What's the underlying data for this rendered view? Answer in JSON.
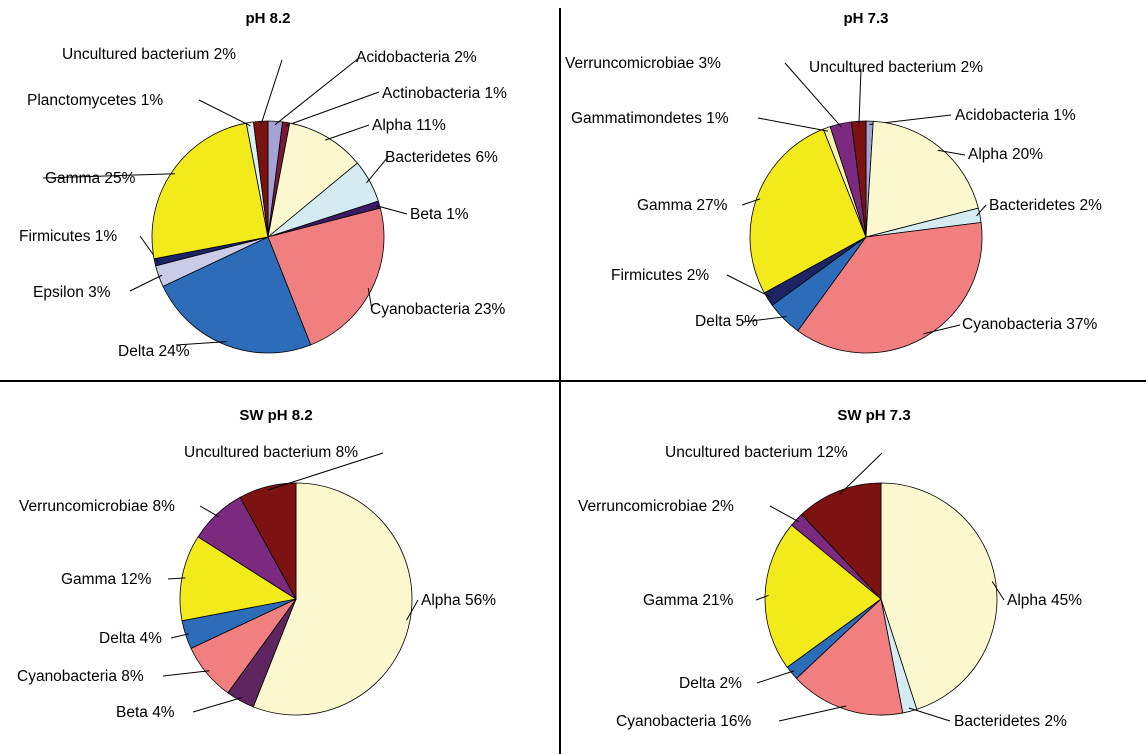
{
  "chart_data": [
    {
      "type": "pie",
      "title": "pH 8.2",
      "slices": [
        {
          "label": "Acidobacteria 2%",
          "value": 2,
          "color": "#a3a3d6"
        },
        {
          "label": "Actinobacteria 1%",
          "value": 1,
          "color": "#7a1838"
        },
        {
          "label": "Alpha 11%",
          "value": 11,
          "color": "#fbf8cf"
        },
        {
          "label": "Bacteridetes 6%",
          "value": 6,
          "color": "#d4ebf2"
        },
        {
          "label": "Beta 1%",
          "value": 1,
          "color": "#3c1b66"
        },
        {
          "label": "Cyanobacteria 23%",
          "value": 23,
          "color": "#f27f7f"
        },
        {
          "label": "Delta 24%",
          "value": 24,
          "color": "#2c6cb8"
        },
        {
          "label": "Epsilon 3%",
          "value": 3,
          "color": "#c9cbe9"
        },
        {
          "label": "Firmicutes 1%",
          "value": 1,
          "color": "#1c2466"
        },
        {
          "label": "Gamma 25%",
          "value": 25,
          "color": "#f3ea1c"
        },
        {
          "label": "Planctomycetes 1%",
          "value": 1,
          "color": "#d9f1ef"
        },
        {
          "label": "Uncultured bacterium 2%",
          "value": 2,
          "color": "#7c1212"
        }
      ]
    },
    {
      "type": "pie",
      "title": "pH 7.3",
      "slices": [
        {
          "label": "Acidobacteria 1%",
          "value": 1,
          "color": "#a3a3d6"
        },
        {
          "label": "Alpha 20%",
          "value": 20,
          "color": "#fbf8cf"
        },
        {
          "label": "Bacteridetes 2%",
          "value": 2,
          "color": "#d4ebf2"
        },
        {
          "label": "Cyanobacteria 37%",
          "value": 37,
          "color": "#f27f7f"
        },
        {
          "label": "Delta 5%",
          "value": 5,
          "color": "#2c6cb8"
        },
        {
          "label": "Firmicutes 2%",
          "value": 2,
          "color": "#1c2466"
        },
        {
          "label": "Gamma 27%",
          "value": 27,
          "color": "#f3ea1c"
        },
        {
          "label": "Gammatimondetes 1%",
          "value": 1,
          "color": "#f5f3b0"
        },
        {
          "label": "Verruncomicrobiae 3%",
          "value": 3,
          "color": "#7b2a80"
        },
        {
          "label": "Uncultured bacterium 2%",
          "value": 2,
          "color": "#7c1212"
        }
      ]
    },
    {
      "type": "pie",
      "title": "SW pH 8.2",
      "slices": [
        {
          "label": "Alpha 56%",
          "value": 56,
          "color": "#fbf8cf"
        },
        {
          "label": "Beta 4%",
          "value": 4,
          "color": "#5e2560"
        },
        {
          "label": "Cyanobacteria 8%",
          "value": 8,
          "color": "#f27f7f"
        },
        {
          "label": "Delta 4%",
          "value": 4,
          "color": "#2c6cb8"
        },
        {
          "label": "Gamma 12%",
          "value": 12,
          "color": "#f3ea1c"
        },
        {
          "label": "Verruncomicrobiae 8%",
          "value": 8,
          "color": "#7b2a80"
        },
        {
          "label": "Uncultured bacterium 8%",
          "value": 8,
          "color": "#7c1212"
        }
      ]
    },
    {
      "type": "pie",
      "title": "SW pH 7.3",
      "slices": [
        {
          "label": "Alpha 45%",
          "value": 45,
          "color": "#fbf8cf"
        },
        {
          "label": "Bacteridetes 2%",
          "value": 2,
          "color": "#d4ebf2"
        },
        {
          "label": "Cyanobacteria 16%",
          "value": 16,
          "color": "#f27f7f"
        },
        {
          "label": "Delta 2%",
          "value": 2,
          "color": "#2c6cb8"
        },
        {
          "label": "Gamma 21%",
          "value": 21,
          "color": "#f3ea1c"
        },
        {
          "label": "Verruncomicrobiae 2%",
          "value": 2,
          "color": "#7b2a80"
        },
        {
          "label": "Uncultured bacterium 12%",
          "value": 12,
          "color": "#7c1212"
        }
      ]
    }
  ]
}
